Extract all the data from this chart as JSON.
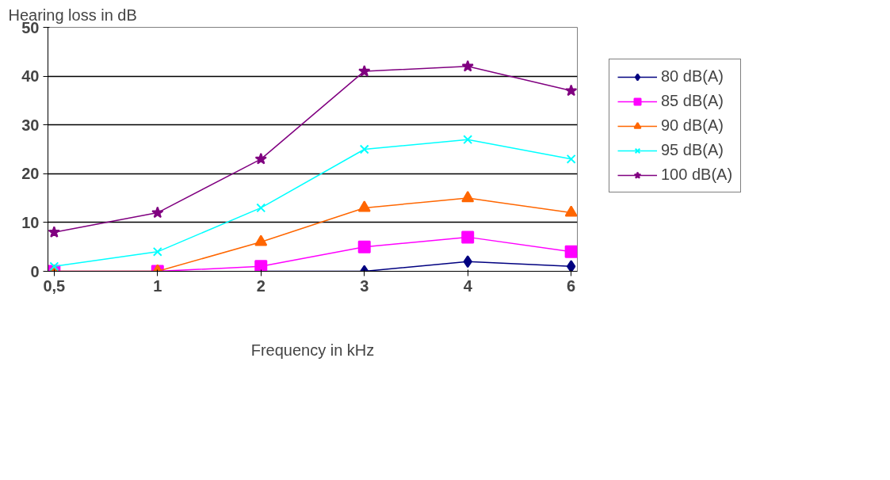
{
  "chart_data": {
    "type": "line",
    "ylabel": "Hearing loss in dB",
    "xlabel": "Frequency in kHz",
    "categories": [
      "0,5",
      "1",
      "2",
      "3",
      "4",
      "6"
    ],
    "ylim": [
      0,
      50
    ],
    "yticks": [
      0,
      10,
      20,
      30,
      40,
      50
    ],
    "grid": "y",
    "legend": "right",
    "series": [
      {
        "name": "80 dB(A)",
        "color": "#000080",
        "marker": "diamond",
        "values": [
          null,
          null,
          0,
          0,
          2,
          1
        ]
      },
      {
        "name": "85 dB(A)",
        "color": "#ff00ff",
        "marker": "square",
        "values": [
          0,
          0,
          1,
          5,
          7,
          4
        ]
      },
      {
        "name": "90 dB(A)",
        "color": "#ff6600",
        "marker": "triangle",
        "values": [
          0,
          0,
          6,
          13,
          15,
          12
        ]
      },
      {
        "name": "95 dB(A)",
        "color": "#00ffff",
        "marker": "cross",
        "values": [
          1,
          4,
          13,
          25,
          27,
          23
        ]
      },
      {
        "name": "100 dB(A)",
        "color": "#800080",
        "marker": "star",
        "values": [
          8,
          12,
          23,
          41,
          42,
          37
        ]
      }
    ]
  }
}
